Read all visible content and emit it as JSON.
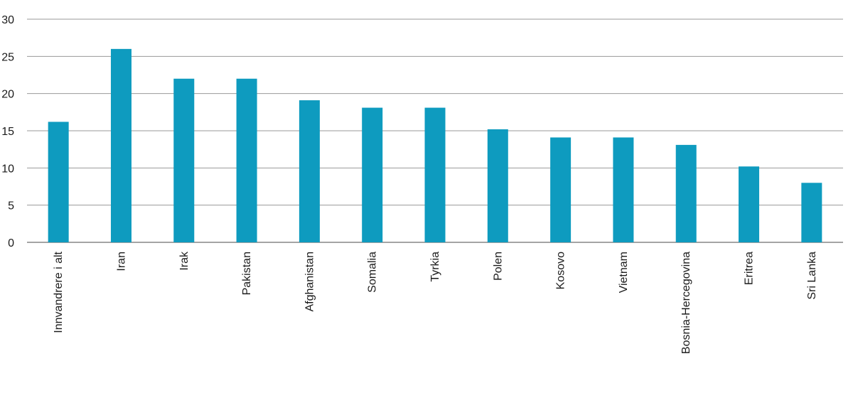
{
  "chart_data": {
    "type": "bar",
    "title": "",
    "xlabel": "",
    "ylabel": "",
    "categories": [
      "Innvandrere i alt",
      "Iran",
      "Irak",
      "Pakistan",
      "Afghanistan",
      "Somalia",
      "Tyrkia",
      "Polen",
      "Kosovo",
      "Vietnam",
      "Bosnia-Hercegovina",
      "Eritrea",
      "Sri Lanka"
    ],
    "values": [
      16.2,
      26,
      22,
      22,
      19.1,
      18.1,
      18.1,
      15.2,
      14.1,
      14.1,
      13.1,
      10.2,
      8
    ],
    "ylim": [
      0,
      30
    ],
    "yticks": [
      0,
      5,
      10,
      15,
      20,
      25,
      30
    ],
    "grid": true,
    "legend": "none",
    "bar_color": "#0e9bbf",
    "grid_color": "#9a9a9a"
  }
}
